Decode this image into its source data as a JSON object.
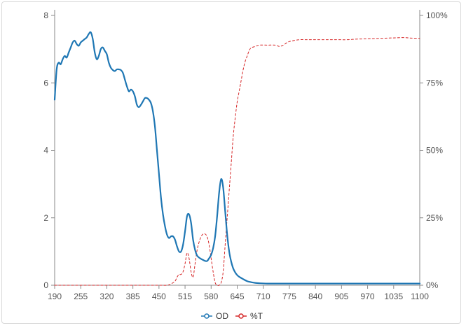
{
  "chart_data": {
    "type": "line",
    "title": "",
    "xlabel": "",
    "ylabel": "",
    "x_ticks": [
      "190",
      "255",
      "320",
      "385",
      "450",
      "515",
      "580",
      "645",
      "710",
      "775",
      "840",
      "905",
      "970",
      "1035",
      "1100"
    ],
    "xlim": [
      190,
      1100
    ],
    "y_left": {
      "ticks": [
        "0",
        "2",
        "4",
        "6",
        "8"
      ],
      "range": [
        0,
        8
      ]
    },
    "y_right": {
      "ticks": [
        "0%",
        "25%",
        "50%",
        "75%",
        "100%"
      ],
      "range": [
        0,
        100
      ]
    },
    "legend": {
      "placement": "bottom-center"
    },
    "series": [
      {
        "name": "OD",
        "axis": "left",
        "color": "#1f77b4",
        "style": "solid",
        "points": [
          [
            190,
            5.5
          ],
          [
            195,
            6.4
          ],
          [
            200,
            6.6
          ],
          [
            205,
            6.55
          ],
          [
            210,
            6.7
          ],
          [
            215,
            6.8
          ],
          [
            220,
            6.75
          ],
          [
            225,
            6.9
          ],
          [
            230,
            7.05
          ],
          [
            235,
            7.2
          ],
          [
            240,
            7.25
          ],
          [
            245,
            7.15
          ],
          [
            250,
            7.1
          ],
          [
            255,
            7.2
          ],
          [
            260,
            7.25
          ],
          [
            265,
            7.3
          ],
          [
            270,
            7.35
          ],
          [
            275,
            7.45
          ],
          [
            280,
            7.5
          ],
          [
            285,
            7.3
          ],
          [
            290,
            6.9
          ],
          [
            295,
            6.7
          ],
          [
            300,
            6.8
          ],
          [
            305,
            7.0
          ],
          [
            310,
            7.05
          ],
          [
            315,
            6.95
          ],
          [
            320,
            6.85
          ],
          [
            325,
            6.6
          ],
          [
            330,
            6.45
          ],
          [
            335,
            6.38
          ],
          [
            340,
            6.35
          ],
          [
            345,
            6.4
          ],
          [
            350,
            6.4
          ],
          [
            355,
            6.38
          ],
          [
            360,
            6.3
          ],
          [
            365,
            6.1
          ],
          [
            370,
            5.9
          ],
          [
            375,
            5.75
          ],
          [
            380,
            5.8
          ],
          [
            385,
            5.75
          ],
          [
            390,
            5.6
          ],
          [
            395,
            5.35
          ],
          [
            400,
            5.28
          ],
          [
            405,
            5.35
          ],
          [
            410,
            5.45
          ],
          [
            415,
            5.55
          ],
          [
            420,
            5.55
          ],
          [
            425,
            5.5
          ],
          [
            430,
            5.4
          ],
          [
            435,
            5.15
          ],
          [
            440,
            4.7
          ],
          [
            445,
            4.0
          ],
          [
            450,
            3.3
          ],
          [
            455,
            2.6
          ],
          [
            460,
            2.1
          ],
          [
            465,
            1.75
          ],
          [
            470,
            1.5
          ],
          [
            475,
            1.4
          ],
          [
            480,
            1.45
          ],
          [
            485,
            1.45
          ],
          [
            490,
            1.35
          ],
          [
            495,
            1.15
          ],
          [
            500,
            1.0
          ],
          [
            505,
            1.0
          ],
          [
            510,
            1.2
          ],
          [
            515,
            1.6
          ],
          [
            520,
            2.05
          ],
          [
            525,
            2.1
          ],
          [
            530,
            1.85
          ],
          [
            535,
            1.35
          ],
          [
            540,
            1.05
          ],
          [
            545,
            0.88
          ],
          [
            550,
            0.82
          ],
          [
            555,
            0.78
          ],
          [
            560,
            0.75
          ],
          [
            565,
            0.72
          ],
          [
            570,
            0.72
          ],
          [
            575,
            0.8
          ],
          [
            580,
            0.9
          ],
          [
            585,
            1.1
          ],
          [
            590,
            1.45
          ],
          [
            595,
            2.05
          ],
          [
            600,
            2.75
          ],
          [
            605,
            3.15
          ],
          [
            610,
            2.9
          ],
          [
            615,
            2.2
          ],
          [
            620,
            1.5
          ],
          [
            625,
            1.0
          ],
          [
            630,
            0.7
          ],
          [
            635,
            0.5
          ],
          [
            640,
            0.38
          ],
          [
            645,
            0.3
          ],
          [
            650,
            0.25
          ],
          [
            660,
            0.18
          ],
          [
            670,
            0.12
          ],
          [
            680,
            0.09
          ],
          [
            690,
            0.07
          ],
          [
            700,
            0.06
          ],
          [
            720,
            0.05
          ],
          [
            750,
            0.05
          ],
          [
            800,
            0.05
          ],
          [
            850,
            0.05
          ],
          [
            900,
            0.05
          ],
          [
            950,
            0.05
          ],
          [
            1000,
            0.05
          ],
          [
            1050,
            0.05
          ],
          [
            1100,
            0.05
          ]
        ]
      },
      {
        "name": "%T",
        "axis": "right",
        "color": "#d62728",
        "style": "dashed",
        "points": [
          [
            190,
            0
          ],
          [
            250,
            0
          ],
          [
            300,
            0
          ],
          [
            350,
            0
          ],
          [
            400,
            0
          ],
          [
            450,
            0
          ],
          [
            470,
            0
          ],
          [
            480,
            0.5
          ],
          [
            490,
            1.5
          ],
          [
            495,
            3
          ],
          [
            500,
            4
          ],
          [
            505,
            4
          ],
          [
            510,
            5
          ],
          [
            515,
            8
          ],
          [
            520,
            12
          ],
          [
            525,
            10
          ],
          [
            530,
            5
          ],
          [
            535,
            3
          ],
          [
            540,
            8
          ],
          [
            545,
            13
          ],
          [
            550,
            16
          ],
          [
            555,
            18
          ],
          [
            560,
            19
          ],
          [
            565,
            19
          ],
          [
            570,
            18
          ],
          [
            575,
            15
          ],
          [
            580,
            10
          ],
          [
            585,
            5
          ],
          [
            590,
            1
          ],
          [
            595,
            0
          ],
          [
            600,
            0
          ],
          [
            605,
            1
          ],
          [
            610,
            5
          ],
          [
            615,
            15
          ],
          [
            620,
            25
          ],
          [
            625,
            35
          ],
          [
            630,
            45
          ],
          [
            635,
            55
          ],
          [
            640,
            62
          ],
          [
            645,
            68
          ],
          [
            650,
            72
          ],
          [
            655,
            76
          ],
          [
            660,
            80
          ],
          [
            665,
            83
          ],
          [
            670,
            85
          ],
          [
            675,
            87
          ],
          [
            680,
            88
          ],
          [
            690,
            88.5
          ],
          [
            700,
            89
          ],
          [
            720,
            89
          ],
          [
            740,
            89
          ],
          [
            750,
            88.5
          ],
          [
            760,
            89
          ],
          [
            770,
            90
          ],
          [
            780,
            90.5
          ],
          [
            800,
            91
          ],
          [
            820,
            91
          ],
          [
            840,
            91
          ],
          [
            860,
            91
          ],
          [
            880,
            91
          ],
          [
            900,
            91
          ],
          [
            920,
            91
          ],
          [
            940,
            91.2
          ],
          [
            960,
            91.3
          ],
          [
            980,
            91.4
          ],
          [
            1000,
            91.5
          ],
          [
            1020,
            91.6
          ],
          [
            1040,
            91.7
          ],
          [
            1060,
            91.8
          ],
          [
            1080,
            91.6
          ],
          [
            1100,
            91.5
          ]
        ]
      }
    ]
  }
}
